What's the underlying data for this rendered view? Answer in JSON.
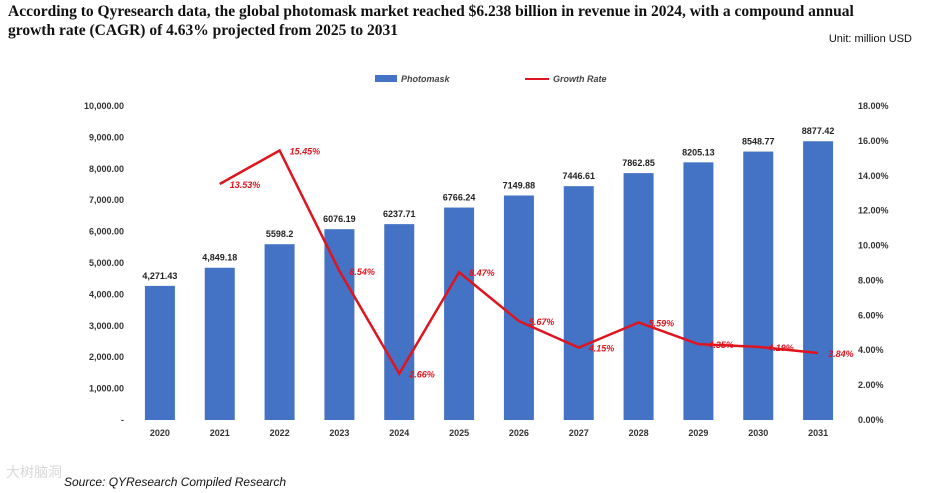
{
  "header": {
    "title": "According to Qyresearch data, the global photomask market reached $6.238 billion in revenue in 2024, with a compound annual growth rate (CAGR) of 4.63% projected from 2025 to 2031",
    "unit": "Unit: million USD"
  },
  "footer": {
    "source": "Source: QYResearch Compiled Research",
    "watermark": "大树脑洞"
  },
  "colors": {
    "bar": "#4472c4",
    "line": "#e0141e"
  },
  "chart_data": {
    "type": "bar",
    "categories": [
      "2020",
      "2021",
      "2022",
      "2023",
      "2024",
      "2025",
      "2026",
      "2027",
      "2028",
      "2029",
      "2030",
      "2031"
    ],
    "series": [
      {
        "name": "Photomask",
        "type": "bar",
        "axis": "left",
        "values": [
          4271.43,
          4849.18,
          5598.2,
          6076.19,
          6237.71,
          6766.24,
          7149.88,
          7446.61,
          7862.85,
          8205.13,
          8548.77,
          8877.42
        ],
        "labels": [
          "4,271.43",
          "4,849.18",
          "5598.2",
          "6076.19",
          "6237.71",
          "6766.24",
          "7149.88",
          "7446.61",
          "7862.85",
          "8205.13",
          "8548.77",
          "8877.42"
        ]
      },
      {
        "name": "Growth Rate",
        "type": "line",
        "axis": "right",
        "values": [
          null,
          13.53,
          15.45,
          8.54,
          2.66,
          8.47,
          5.67,
          4.15,
          5.59,
          4.35,
          4.19,
          3.84
        ],
        "labels": [
          "",
          "13.53%",
          "15.45%",
          "8.54%",
          "2.66%",
          "8.47%",
          "5.67%",
          "4.15%",
          "5.59%",
          "4.35%",
          "4.19%",
          "3.84%"
        ]
      }
    ],
    "left_axis": {
      "ylim": [
        0,
        10000
      ],
      "ticks": [
        "-",
        "1,000.00",
        "2,000.00",
        "3,000.00",
        "4,000.00",
        "5,000.00",
        "6,000.00",
        "7,000.00",
        "8,000.00",
        "9,000.00",
        "10,000.00"
      ]
    },
    "right_axis": {
      "ylim": [
        0,
        18
      ],
      "ticks": [
        "0.00%",
        "2.00%",
        "4.00%",
        "6.00%",
        "8.00%",
        "10.00%",
        "12.00%",
        "14.00%",
        "16.00%",
        "18.00%"
      ]
    },
    "legend_position": "top-center",
    "grid": false
  }
}
